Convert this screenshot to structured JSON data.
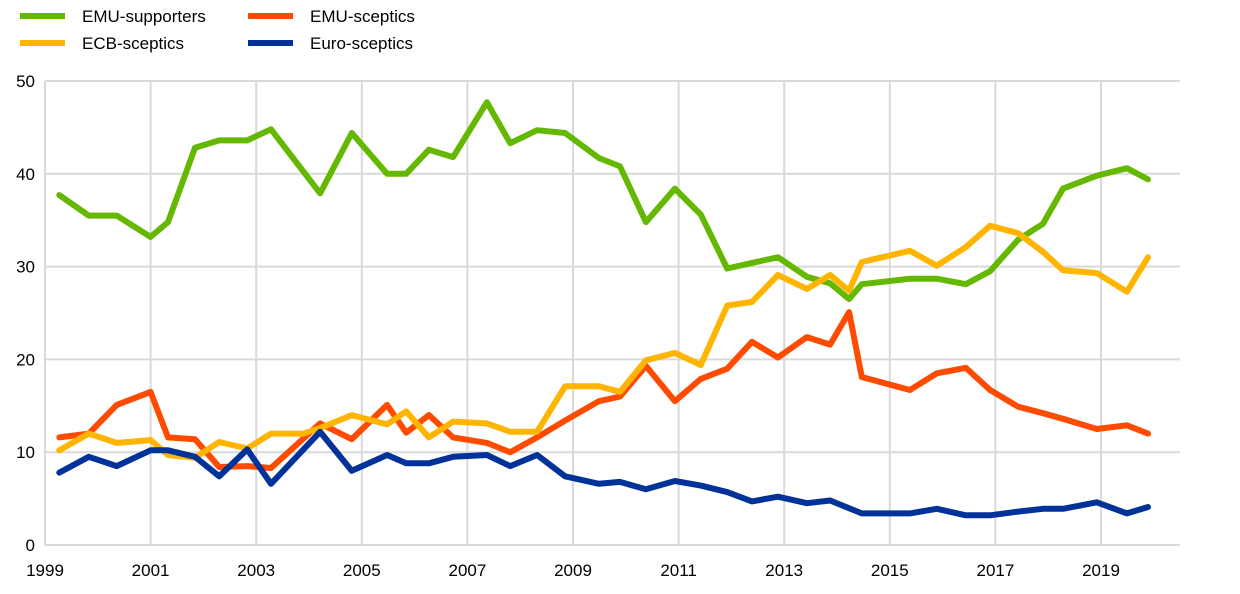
{
  "chart_data": {
    "type": "line",
    "title": "",
    "xlabel": "",
    "ylabel": "",
    "xlim": [
      1999,
      2020
    ],
    "ylim": [
      0,
      50
    ],
    "x_ticks": [
      1999,
      2001,
      2003,
      2005,
      2007,
      2009,
      2011,
      2013,
      2015,
      2017,
      2019
    ],
    "y_ticks": [
      0,
      10,
      20,
      30,
      40,
      50
    ],
    "grid": true,
    "legend_position": "top-left",
    "x": [
      1999.27,
      1999.83,
      2000.36,
      2001.0,
      2001.33,
      2001.84,
      2002.3,
      2002.83,
      2003.28,
      2003.89,
      2004.21,
      2004.81,
      2005.48,
      2005.84,
      2006.27,
      2006.73,
      2007.37,
      2007.81,
      2008.32,
      2008.85,
      2009.49,
      2009.89,
      2010.38,
      2010.93,
      2011.42,
      2011.92,
      2012.39,
      2012.88,
      2013.43,
      2013.87,
      2014.23,
      2014.47,
      2015.38,
      2015.89,
      2016.44,
      2016.9,
      2017.43,
      2017.9,
      2018.28,
      2018.92,
      2019.49,
      2019.89
    ],
    "series": [
      {
        "name": "EMU-supporters",
        "color": "#65b800",
        "values": [
          37.7,
          35.5,
          35.5,
          33.2,
          34.8,
          42.8,
          43.6,
          43.6,
          44.8,
          null,
          37.9,
          44.4,
          40.0,
          40.0,
          42.6,
          41.8,
          47.7,
          43.3,
          44.7,
          44.4,
          41.7,
          40.8,
          34.8,
          38.4,
          35.6,
          29.8,
          30.4,
          31.0,
          28.9,
          28.2,
          26.5,
          28.1,
          28.7,
          28.7,
          28.1,
          29.5,
          32.9,
          34.6,
          38.4,
          39.8,
          40.6,
          39.4
        ]
      },
      {
        "name": "EMU-sceptics",
        "color": "#ff4b00",
        "values": [
          11.6,
          12.0,
          15.1,
          16.5,
          11.6,
          11.4,
          8.4,
          8.5,
          8.3,
          null,
          13.1,
          11.4,
          15.1,
          12.1,
          14.0,
          11.6,
          11.0,
          10.0,
          11.6,
          13.4,
          15.5,
          16.0,
          19.3,
          15.5,
          17.9,
          19.0,
          21.9,
          20.2,
          22.4,
          21.6,
          25.1,
          18.1,
          16.7,
          18.5,
          19.1,
          16.7,
          14.9,
          14.2,
          13.6,
          12.5,
          12.9,
          12.0
        ]
      },
      {
        "name": "ECB-sceptics",
        "color": "#ffb400",
        "values": [
          10.2,
          12.0,
          11.0,
          11.3,
          9.7,
          9.4,
          11.1,
          10.4,
          12.0,
          12.0,
          12.6,
          14.0,
          13.0,
          14.4,
          11.6,
          13.3,
          13.1,
          12.2,
          12.2,
          17.1,
          17.1,
          16.5,
          19.9,
          20.7,
          19.4,
          25.8,
          26.2,
          29.1,
          27.6,
          29.1,
          27.4,
          30.5,
          31.7,
          30.1,
          32.1,
          34.4,
          33.6,
          31.6,
          29.6,
          29.3,
          27.3,
          31.0
        ]
      },
      {
        "name": "Euro-sceptics",
        "color": "#003299",
        "values": [
          7.8,
          9.5,
          8.5,
          10.2,
          10.2,
          9.5,
          7.4,
          10.3,
          6.6,
          null,
          12.2,
          8.0,
          9.7,
          8.8,
          8.8,
          9.5,
          9.7,
          8.5,
          9.7,
          7.4,
          6.6,
          6.8,
          6.0,
          6.9,
          6.4,
          5.7,
          4.7,
          5.2,
          4.5,
          4.8,
          null,
          3.4,
          3.4,
          3.9,
          3.2,
          3.2,
          3.6,
          3.9,
          3.9,
          4.6,
          3.4,
          4.1
        ]
      }
    ]
  }
}
